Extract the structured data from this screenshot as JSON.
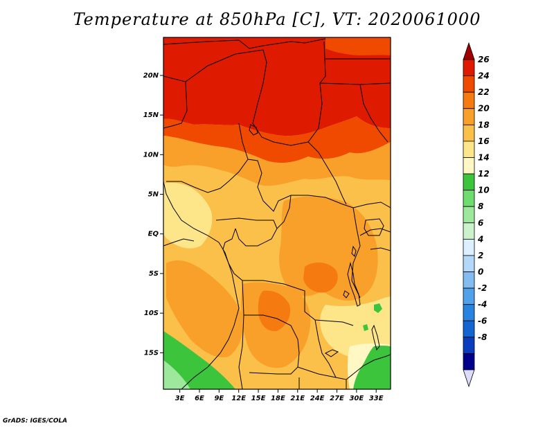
{
  "title": "Temperature at 850hPa [C], VT: 2020061000",
  "credit": "GrADS: IGES/COLA",
  "map": {
    "lat_labels": [
      {
        "text": "20N",
        "lat": 20
      },
      {
        "text": "15N",
        "lat": 15
      },
      {
        "text": "10N",
        "lat": 10
      },
      {
        "text": "5N",
        "lat": 5
      },
      {
        "text": "EQ",
        "lat": 0
      },
      {
        "text": "5S",
        "lat": -5
      },
      {
        "text": "10S",
        "lat": -10
      },
      {
        "text": "15S",
        "lat": -15
      }
    ],
    "lon_labels": [
      {
        "text": "3E",
        "lon": 3
      },
      {
        "text": "6E",
        "lon": 6
      },
      {
        "text": "9E",
        "lon": 9
      },
      {
        "text": "12E",
        "lon": 12
      },
      {
        "text": "15E",
        "lon": 15
      },
      {
        "text": "18E",
        "lon": 18
      },
      {
        "text": "21E",
        "lon": 21
      },
      {
        "text": "24E",
        "lon": 24
      },
      {
        "text": "27E",
        "lon": 27
      },
      {
        "text": "30E",
        "lon": 30
      },
      {
        "text": "33E",
        "lon": 33
      }
    ],
    "lon_range": [
      0.5,
      35.2
    ],
    "lat_range": [
      -19.6,
      24.8
    ]
  },
  "colorbar": {
    "labels": [
      "26",
      "24",
      "22",
      "20",
      "18",
      "16",
      "14",
      "12",
      "10",
      "8",
      "6",
      "4",
      "2",
      "0",
      "-2",
      "-4",
      "-6",
      "-8"
    ],
    "colors": [
      "#a00000",
      "#de1a00",
      "#f04a00",
      "#f57a10",
      "#f8a02a",
      "#fbc04a",
      "#fde58a",
      "#fff8c4",
      "#3cc43c",
      "#6edc6e",
      "#9ee89e",
      "#ccf2cc",
      "#dcf0ff",
      "#b4d8fa",
      "#82bcf0",
      "#50a0ea",
      "#2882e0",
      "#1464d2",
      "#0a3cbe",
      "#00008c",
      "#dcdcfa"
    ]
  }
}
